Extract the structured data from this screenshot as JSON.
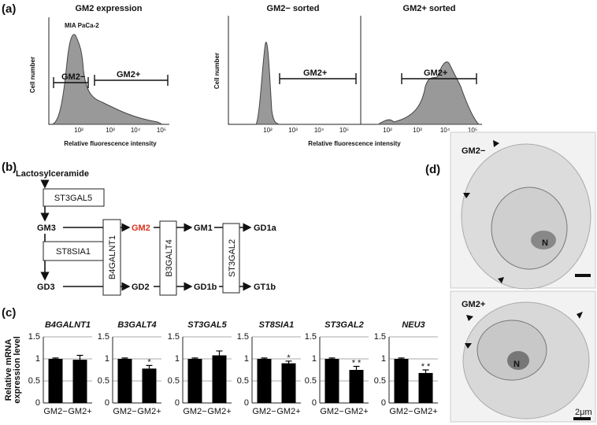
{
  "panel_a": {
    "label": "(a)",
    "left": {
      "title": "GM2 expression",
      "sample": "MIA PaCa-2",
      "ylabel": "Cell number",
      "xlabel": "Relative fluorescence intensity",
      "xtick_labels": [
        "10²",
        "10³",
        "10⁴",
        "10⁵"
      ],
      "gates": [
        "GM2−",
        "GM2+"
      ]
    },
    "right": {
      "titles": [
        "GM2− sorted",
        "GM2+ sorted"
      ],
      "ylabel": "Cell number",
      "xlabel": "Relative fluorescence intensity",
      "xtick_labels": [
        "10²",
        "10³",
        "10⁴",
        "10⁵",
        "10²",
        "10³",
        "10⁴",
        "10⁵"
      ],
      "gates": [
        "GM2+",
        "GM2+"
      ]
    }
  },
  "panel_b": {
    "label": "(b)",
    "start": "Lactosylceramide",
    "enzymes": [
      "ST3GAL5",
      "ST8SIA1",
      "B4GALNT1",
      "B3GALT4",
      "ST3GAL2"
    ],
    "lipids": [
      "GM3",
      "GD3",
      "GM2",
      "GD2",
      "GM1",
      "GD1b",
      "GD1a",
      "GT1b"
    ]
  },
  "panel_c": {
    "label": "(c)",
    "ylabel": [
      "Relative mRNA",
      "expression level"
    ],
    "charts": [
      {
        "type": "bar",
        "title": "B4GALNT1",
        "categories": [
          "GM2−",
          "GM2+"
        ],
        "values": [
          1,
          0.98
        ],
        "errors": [
          0.02,
          0.1
        ],
        "ylim": [
          0,
          1.5
        ],
        "yticks": [
          0,
          0.5,
          1,
          1.5
        ]
      },
      {
        "type": "bar",
        "title": "B3GALT4",
        "categories": [
          "GM2−",
          "GM2+"
        ],
        "values": [
          1,
          0.78
        ],
        "errors": [
          0.02,
          0.07
        ],
        "significance": "*",
        "ylim": [
          0,
          1.5
        ],
        "yticks": [
          0,
          0.5,
          1,
          1.5
        ]
      },
      {
        "type": "bar",
        "title": "ST3GAL5",
        "categories": [
          "GM2−",
          "GM2+"
        ],
        "values": [
          1,
          1.08
        ],
        "errors": [
          0.02,
          0.1
        ],
        "ylim": [
          0,
          1.5
        ],
        "yticks": [
          0,
          0.5,
          1,
          1.5
        ]
      },
      {
        "type": "bar",
        "title": "ST8SIA1",
        "categories": [
          "GM2−",
          "GM2+"
        ],
        "values": [
          1,
          0.9
        ],
        "errors": [
          0.02,
          0.05
        ],
        "significance": "*",
        "ylim": [
          0,
          1.5
        ],
        "yticks": [
          0,
          0.5,
          1,
          1.5
        ]
      },
      {
        "type": "bar",
        "title": "ST3GAL2",
        "categories": [
          "GM2−",
          "GM2+"
        ],
        "values": [
          1,
          0.75
        ],
        "errors": [
          0.02,
          0.08
        ],
        "significance": "* *",
        "ylim": [
          0,
          1.5
        ],
        "yticks": [
          0,
          0.5,
          1,
          1.5
        ]
      },
      {
        "type": "bar",
        "title": "NEU3",
        "categories": [
          "GM2−",
          "GM2+"
        ],
        "values": [
          1,
          0.68
        ],
        "errors": [
          0.02,
          0.07
        ],
        "significance": "* *",
        "ylim": [
          0,
          1.5
        ],
        "yticks": [
          0,
          0.5,
          1,
          1.5
        ]
      }
    ]
  },
  "panel_d": {
    "label": "(d)",
    "panels": [
      "GM2−",
      "GM2+"
    ],
    "nucleus": [
      "N",
      "N"
    ],
    "scale_bar": "2μm"
  }
}
